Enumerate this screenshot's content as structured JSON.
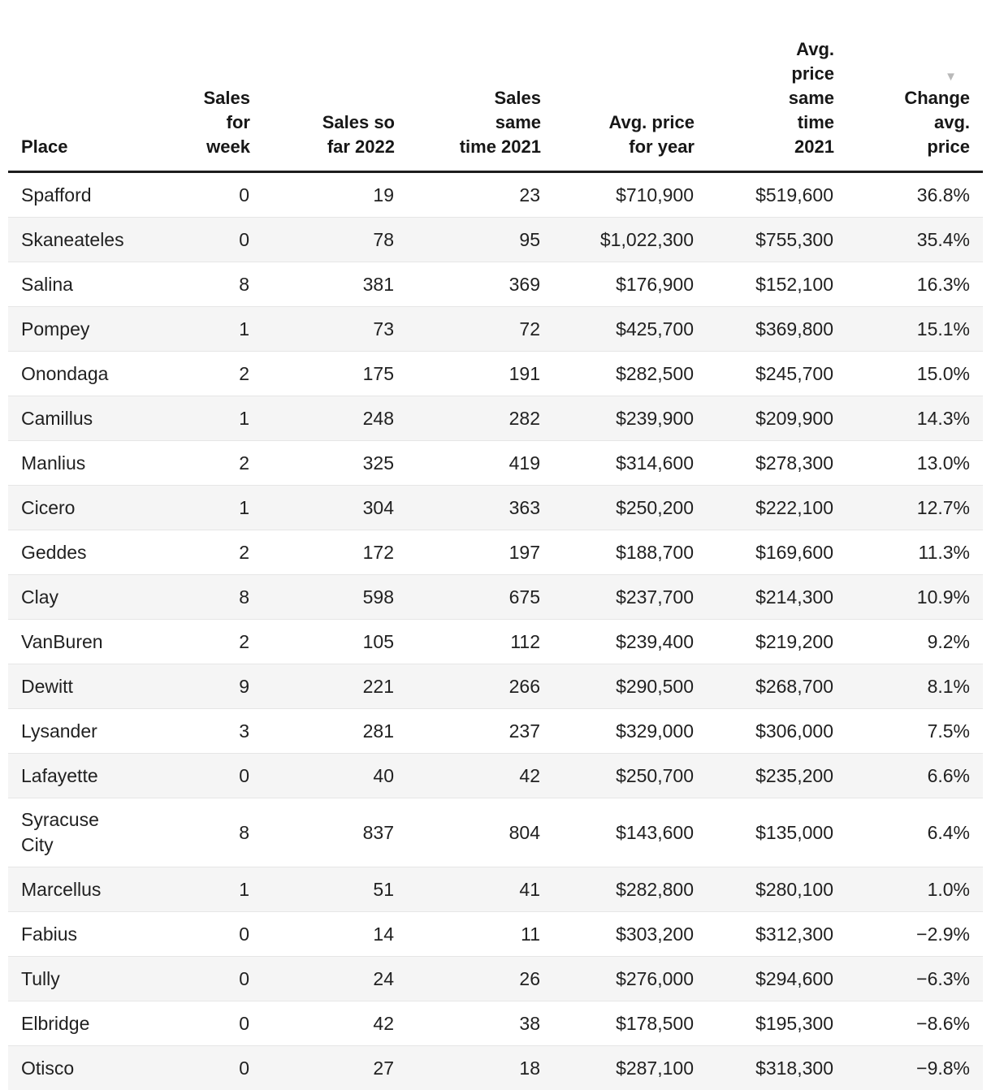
{
  "chart_data": {
    "type": "table",
    "sort_icon": "▼",
    "sorted_column": "change_avg_price",
    "sort_direction": "descending",
    "colors": {
      "header_rule": "#1d1d1d",
      "stripe": "#f5f5f5",
      "row_divider": "#e6e6e6",
      "text": "#212121",
      "sort_icon": "#b9b9b9"
    },
    "columns": [
      {
        "key": "place",
        "label": "Place",
        "align": "left"
      },
      {
        "key": "sales_week",
        "label": "Sales\nfor\nweek",
        "align": "right"
      },
      {
        "key": "sales_2022",
        "label": "Sales so\nfar 2022",
        "align": "right"
      },
      {
        "key": "sales_2021",
        "label": "Sales\nsame\ntime 2021",
        "align": "right"
      },
      {
        "key": "avg_price_year",
        "label": "Avg. price\nfor year",
        "align": "right"
      },
      {
        "key": "avg_price_2021",
        "label": "Avg.\nprice\nsame\ntime\n2021",
        "align": "right"
      },
      {
        "key": "change_avg_price",
        "label": "Change\navg.\nprice",
        "align": "right"
      }
    ],
    "rows": [
      {
        "place": "Spafford",
        "sales_week": "0",
        "sales_2022": "19",
        "sales_2021": "23",
        "avg_price_year": "$710,900",
        "avg_price_2021": "$519,600",
        "change_avg_price": "36.8%"
      },
      {
        "place": "Skaneateles",
        "sales_week": "0",
        "sales_2022": "78",
        "sales_2021": "95",
        "avg_price_year": "$1,022,300",
        "avg_price_2021": "$755,300",
        "change_avg_price": "35.4%"
      },
      {
        "place": "Salina",
        "sales_week": "8",
        "sales_2022": "381",
        "sales_2021": "369",
        "avg_price_year": "$176,900",
        "avg_price_2021": "$152,100",
        "change_avg_price": "16.3%"
      },
      {
        "place": "Pompey",
        "sales_week": "1",
        "sales_2022": "73",
        "sales_2021": "72",
        "avg_price_year": "$425,700",
        "avg_price_2021": "$369,800",
        "change_avg_price": "15.1%"
      },
      {
        "place": "Onondaga",
        "sales_week": "2",
        "sales_2022": "175",
        "sales_2021": "191",
        "avg_price_year": "$282,500",
        "avg_price_2021": "$245,700",
        "change_avg_price": "15.0%"
      },
      {
        "place": "Camillus",
        "sales_week": "1",
        "sales_2022": "248",
        "sales_2021": "282",
        "avg_price_year": "$239,900",
        "avg_price_2021": "$209,900",
        "change_avg_price": "14.3%"
      },
      {
        "place": "Manlius",
        "sales_week": "2",
        "sales_2022": "325",
        "sales_2021": "419",
        "avg_price_year": "$314,600",
        "avg_price_2021": "$278,300",
        "change_avg_price": "13.0%"
      },
      {
        "place": "Cicero",
        "sales_week": "1",
        "sales_2022": "304",
        "sales_2021": "363",
        "avg_price_year": "$250,200",
        "avg_price_2021": "$222,100",
        "change_avg_price": "12.7%"
      },
      {
        "place": "Geddes",
        "sales_week": "2",
        "sales_2022": "172",
        "sales_2021": "197",
        "avg_price_year": "$188,700",
        "avg_price_2021": "$169,600",
        "change_avg_price": "11.3%"
      },
      {
        "place": "Clay",
        "sales_week": "8",
        "sales_2022": "598",
        "sales_2021": "675",
        "avg_price_year": "$237,700",
        "avg_price_2021": "$214,300",
        "change_avg_price": "10.9%"
      },
      {
        "place": "VanBuren",
        "sales_week": "2",
        "sales_2022": "105",
        "sales_2021": "112",
        "avg_price_year": "$239,400",
        "avg_price_2021": "$219,200",
        "change_avg_price": "9.2%"
      },
      {
        "place": "Dewitt",
        "sales_week": "9",
        "sales_2022": "221",
        "sales_2021": "266",
        "avg_price_year": "$290,500",
        "avg_price_2021": "$268,700",
        "change_avg_price": "8.1%"
      },
      {
        "place": "Lysander",
        "sales_week": "3",
        "sales_2022": "281",
        "sales_2021": "237",
        "avg_price_year": "$329,000",
        "avg_price_2021": "$306,000",
        "change_avg_price": "7.5%"
      },
      {
        "place": "Lafayette",
        "sales_week": "0",
        "sales_2022": "40",
        "sales_2021": "42",
        "avg_price_year": "$250,700",
        "avg_price_2021": "$235,200",
        "change_avg_price": "6.6%"
      },
      {
        "place": "Syracuse City",
        "sales_week": "8",
        "sales_2022": "837",
        "sales_2021": "804",
        "avg_price_year": "$143,600",
        "avg_price_2021": "$135,000",
        "change_avg_price": "6.4%"
      },
      {
        "place": "Marcellus",
        "sales_week": "1",
        "sales_2022": "51",
        "sales_2021": "41",
        "avg_price_year": "$282,800",
        "avg_price_2021": "$280,100",
        "change_avg_price": "1.0%"
      },
      {
        "place": "Fabius",
        "sales_week": "0",
        "sales_2022": "14",
        "sales_2021": "11",
        "avg_price_year": "$303,200",
        "avg_price_2021": "$312,300",
        "change_avg_price": "−2.9%"
      },
      {
        "place": "Tully",
        "sales_week": "0",
        "sales_2022": "24",
        "sales_2021": "26",
        "avg_price_year": "$276,000",
        "avg_price_2021": "$294,600",
        "change_avg_price": "−6.3%"
      },
      {
        "place": "Elbridge",
        "sales_week": "0",
        "sales_2022": "42",
        "sales_2021": "38",
        "avg_price_year": "$178,500",
        "avg_price_2021": "$195,300",
        "change_avg_price": "−8.6%"
      },
      {
        "place": "Otisco",
        "sales_week": "0",
        "sales_2022": "27",
        "sales_2021": "18",
        "avg_price_year": "$287,100",
        "avg_price_2021": "$318,300",
        "change_avg_price": "−9.8%"
      }
    ]
  }
}
